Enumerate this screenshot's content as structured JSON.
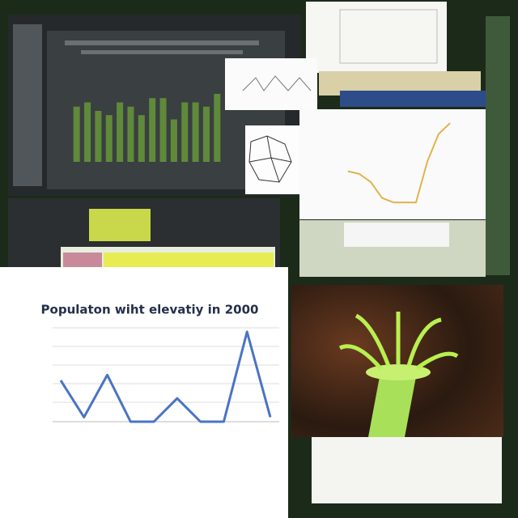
{
  "chart_data": [
    {
      "type": "bar",
      "color": "#5f8a3a",
      "categories": [
        null,
        null,
        null,
        null,
        null,
        null,
        null,
        null,
        null,
        null,
        null,
        null,
        null,
        null
      ],
      "values": [
        65,
        70,
        60,
        55,
        70,
        65,
        55,
        75,
        75,
        50,
        70,
        70,
        65,
        80
      ],
      "ylim": [
        0,
        100
      ]
    },
    {
      "type": "line",
      "color": "#e2b24c",
      "categories": [
        null,
        null,
        null,
        null,
        null,
        null,
        null,
        null,
        null,
        null
      ],
      "values": [
        44,
        41,
        32,
        14,
        9,
        9,
        9,
        55,
        86,
        98
      ],
      "ylim": [
        0,
        100
      ]
    },
    {
      "type": "line",
      "title": "Populaton wiht elevatiy in 2000",
      "color": "#4a74c4",
      "categories": [
        null,
        null,
        null,
        null,
        null,
        null,
        null,
        null,
        null,
        null
      ],
      "values": [
        46,
        5,
        52,
        0,
        0,
        26,
        0,
        0,
        100,
        5
      ],
      "ylim": [
        0,
        100
      ]
    }
  ]
}
